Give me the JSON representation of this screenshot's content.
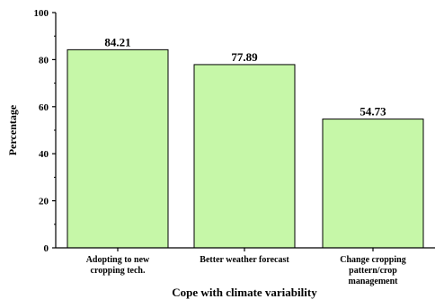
{
  "chart_data": {
    "type": "bar",
    "categories": [
      [
        "Adopting to new",
        "cropping tech."
      ],
      [
        "Better weather forecast"
      ],
      [
        "Change cropping",
        "pattern/crop",
        "management"
      ]
    ],
    "values": [
      84.21,
      77.89,
      54.73
    ],
    "value_labels": [
      "84.21",
      "77.89",
      "54.73"
    ],
    "xlabel": "Cope with climate variability",
    "ylabel": "Percentage",
    "ylim": [
      0,
      100
    ],
    "yticks": [
      "0",
      "20",
      "40",
      "60",
      "80",
      "100"
    ],
    "grid": false,
    "bar_color": "#c6f7a8",
    "bar_edge_color": "#000000"
  }
}
